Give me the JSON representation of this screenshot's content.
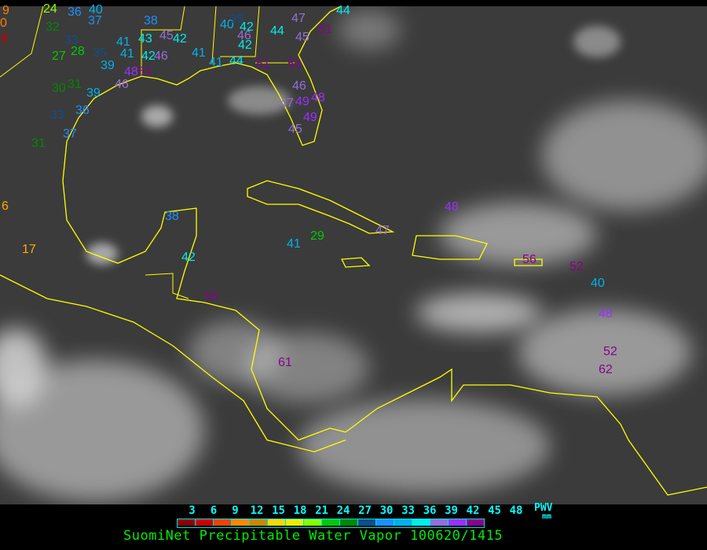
{
  "title": "SuomiNet Precipitable Water Vapor 100620/1415",
  "legend": {
    "unit_label": "PWV",
    "unit": "mm",
    "ticks": [
      "3",
      "6",
      "9",
      "12",
      "15",
      "18",
      "21",
      "24",
      "27",
      "30",
      "33",
      "36",
      "39",
      "42",
      "45",
      "48"
    ],
    "colors": [
      "#8b0000",
      "#cc0000",
      "#ee4400",
      "#ff8800",
      "#cc8800",
      "#ffd700",
      "#eeee00",
      "#88ff00",
      "#00cc00",
      "#008800",
      "#104e8b",
      "#1e90ff",
      "#00b2ee",
      "#00eeee",
      "#9370db",
      "#9b30ff",
      "#8b008b"
    ]
  },
  "map": {
    "background": "#3a3a3a",
    "coastline_color": "#ffff00",
    "stations": [
      "9",
      "0",
      "8",
      "24",
      "36",
      "40",
      "37",
      "32",
      "33",
      "28",
      "27",
      "35",
      "39",
      "41",
      "41",
      "42",
      "43",
      "45",
      "42",
      "46",
      "48",
      "51",
      "46",
      "39",
      "31",
      "30",
      "36",
      "33",
      "37",
      "31",
      "38",
      "40",
      "35",
      "42",
      "46",
      "42",
      "41",
      "41",
      "44",
      "47",
      "44",
      "45",
      "51",
      "44",
      "51",
      "53",
      "46",
      "47",
      "49",
      "45",
      "49",
      "48",
      "6",
      "17",
      "38",
      "41",
      "29",
      "47",
      "48",
      "56",
      "52",
      "40",
      "48",
      "52",
      "62",
      "61",
      "55",
      "42"
    ]
  }
}
